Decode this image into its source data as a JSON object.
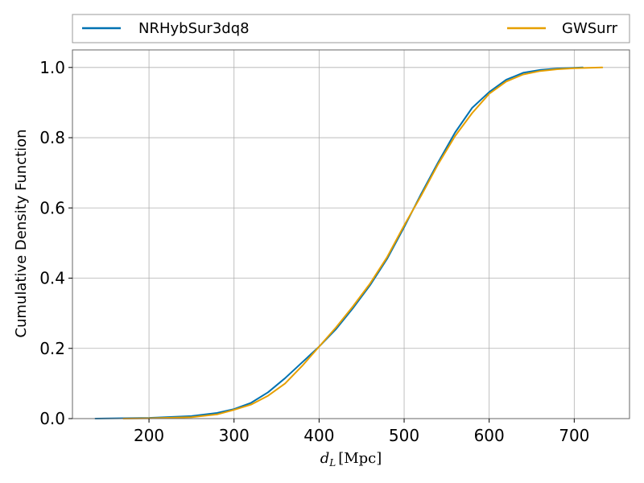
{
  "chart_data": {
    "type": "line",
    "title": "",
    "xlabel": "d_L [Mpc]",
    "xlabel_main": "d",
    "xlabel_sub": "L",
    "xlabel_unit": "[Mpc]",
    "ylabel": "Cumulative Density Function",
    "xlim": [
      110,
      765
    ],
    "ylim": [
      0.0,
      1.05
    ],
    "xticks": [
      200,
      300,
      400,
      500,
      600,
      700
    ],
    "yticks": [
      0.0,
      0.2,
      0.4,
      0.6,
      0.8,
      1.0
    ],
    "xtick_labels": [
      "200",
      "300",
      "400",
      "500",
      "600",
      "700"
    ],
    "ytick_labels": [
      "0.0",
      "0.2",
      "0.4",
      "0.6",
      "0.8",
      "1.0"
    ],
    "grid": true,
    "legend_position": "top, above plot",
    "series": [
      {
        "name": "NRHybSur3dq8",
        "color": "#0072b2",
        "x": [
          137,
          200,
          250,
          280,
          300,
          320,
          340,
          360,
          380,
          400,
          420,
          440,
          460,
          480,
          500,
          520,
          540,
          560,
          580,
          600,
          620,
          640,
          660,
          680,
          700,
          710
        ],
        "y": [
          0.0,
          0.002,
          0.007,
          0.016,
          0.027,
          0.045,
          0.075,
          0.115,
          0.16,
          0.205,
          0.255,
          0.315,
          0.38,
          0.455,
          0.545,
          0.64,
          0.73,
          0.815,
          0.885,
          0.93,
          0.965,
          0.985,
          0.993,
          0.997,
          0.999,
          1.0
        ]
      },
      {
        "name": "GWSurr",
        "color": "#e69f00",
        "x": [
          170,
          200,
          250,
          280,
          300,
          320,
          340,
          360,
          380,
          400,
          420,
          440,
          460,
          480,
          500,
          520,
          540,
          560,
          580,
          600,
          620,
          640,
          660,
          680,
          700,
          733
        ],
        "y": [
          0.0,
          0.001,
          0.004,
          0.012,
          0.025,
          0.04,
          0.065,
          0.1,
          0.15,
          0.205,
          0.26,
          0.32,
          0.385,
          0.46,
          0.55,
          0.635,
          0.725,
          0.805,
          0.87,
          0.925,
          0.96,
          0.98,
          0.99,
          0.995,
          0.998,
          1.0
        ]
      }
    ]
  }
}
